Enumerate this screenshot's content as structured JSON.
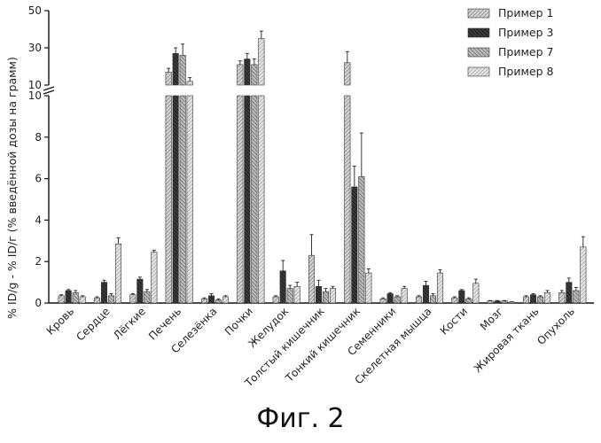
{
  "figure": {
    "caption": "Фиг. 2"
  },
  "chart_data": {
    "type": "bar",
    "ylabel": "% ID/g - % ID/г (% введённой дозы на грамм)",
    "xlabel": "",
    "title": "",
    "axis_break": {
      "lower_range": [
        0,
        10
      ],
      "upper_range": [
        10,
        50
      ]
    },
    "yticks_lower": [
      "0",
      "2",
      "4",
      "6",
      "8",
      "10"
    ],
    "yticks_upper": [
      "10",
      "30",
      "50"
    ],
    "legend_position": "top-right",
    "categories": [
      "Кровь",
      "Сердце",
      "Лёгкие",
      "Печень",
      "Селезёнка",
      "Почки",
      "Желудок",
      "Толстый кишечник",
      "Тонкий кишечник",
      "Семенники",
      "Скелетная мышца",
      "Кости",
      "Мозг",
      "Жировая ткань",
      "Опухоль"
    ],
    "series": [
      {
        "name": "Пример 1",
        "color": "#9a9a9a",
        "values": [
          0.35,
          0.25,
          0.4,
          17,
          0.2,
          21,
          0.3,
          2.3,
          22,
          0.2,
          0.3,
          0.25,
          0.1,
          0.3,
          0.5
        ],
        "errors": [
          0.05,
          0.05,
          0.05,
          2,
          0.05,
          2,
          0.05,
          1.0,
          6,
          0.05,
          0.05,
          0.05,
          0.02,
          0.05,
          0.1
        ]
      },
      {
        "name": "Пример 3",
        "color": "#202020",
        "values": [
          0.6,
          1.0,
          1.15,
          27,
          0.35,
          24,
          1.55,
          0.8,
          5.6,
          0.45,
          0.85,
          0.6,
          0.1,
          0.4,
          1.0
        ],
        "errors": [
          0.05,
          0.1,
          0.1,
          3,
          0.1,
          3,
          0.5,
          0.3,
          1.0,
          0.05,
          0.2,
          0.05,
          0.02,
          0.05,
          0.2
        ]
      },
      {
        "name": "Пример 7",
        "color": "#7a7a7a",
        "values": [
          0.5,
          0.35,
          0.55,
          26,
          0.15,
          21,
          0.7,
          0.55,
          6.1,
          0.3,
          0.35,
          0.2,
          0.1,
          0.3,
          0.6
        ],
        "errors": [
          0.1,
          0.1,
          0.1,
          6,
          0.05,
          3,
          0.15,
          0.15,
          2.1,
          0.05,
          0.1,
          0.05,
          0.02,
          0.05,
          0.15
        ]
      },
      {
        "name": "Пример 8",
        "color": "#b8b8b8",
        "values": [
          0.3,
          2.85,
          2.45,
          12,
          0.3,
          35,
          0.8,
          0.7,
          1.45,
          0.7,
          1.45,
          0.95,
          0.05,
          0.5,
          2.7
        ],
        "errors": [
          0.05,
          0.3,
          0.1,
          2,
          0.05,
          4,
          0.2,
          0.1,
          0.2,
          0.1,
          0.15,
          0.2,
          0.01,
          0.1,
          0.5
        ]
      }
    ]
  }
}
